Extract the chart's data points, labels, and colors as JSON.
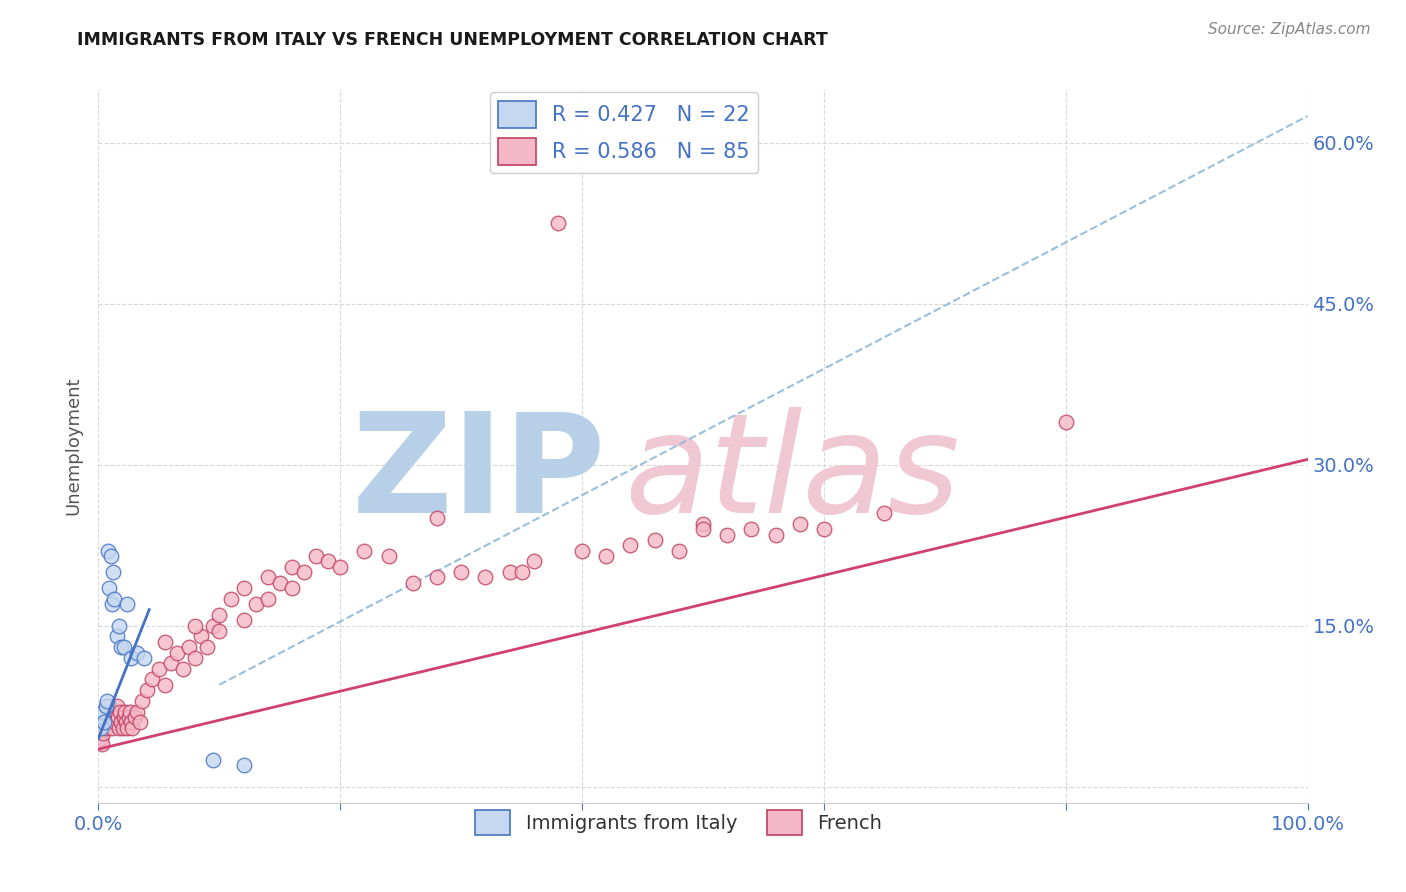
{
  "title": "IMMIGRANTS FROM ITALY VS FRENCH UNEMPLOYMENT CORRELATION CHART",
  "source": "Source: ZipAtlas.com",
  "ylabel": "Unemployment",
  "xlim": [
    0.0,
    1.0
  ],
  "ylim": [
    -0.015,
    0.65
  ],
  "x_ticks": [
    0.0,
    0.2,
    0.4,
    0.6,
    0.8,
    1.0
  ],
  "x_tick_labels": [
    "0.0%",
    "",
    "",
    "",
    "",
    "100.0%"
  ],
  "y_ticks": [
    0.0,
    0.15,
    0.3,
    0.45,
    0.6
  ],
  "y_tick_labels_right": [
    "",
    "15.0%",
    "30.0%",
    "45.0%",
    "60.0%"
  ],
  "color_italy_fill": "#c5d8f0",
  "color_italy_edge": "#4472C4",
  "color_french_fill": "#f5b8c8",
  "color_french_edge": "#c04060",
  "color_italy_trendline": "#4472C4",
  "color_french_trendline": "#d04070",
  "color_dashed": "#90b8d8",
  "background_color": "#ffffff",
  "grid_color": "#d8d8d8",
  "title_color": "#1a1a1a",
  "axis_tick_color": "#4472C4",
  "watermark_zip_color": "#b8cfe8",
  "watermark_atlas_color": "#f0c8d4",
  "legend_r1": "R = 0.427   N = 22",
  "legend_r2": "R = 0.586   N = 85",
  "legend_label1": "Immigrants from Italy",
  "legend_label2": "French",
  "italy_x": [
    0.002,
    0.003,
    0.004,
    0.005,
    0.006,
    0.007,
    0.008,
    0.009,
    0.01,
    0.011,
    0.012,
    0.013,
    0.015,
    0.017,
    0.019,
    0.021,
    0.024,
    0.027,
    0.032,
    0.038,
    0.095,
    0.12
  ],
  "italy_y": [
    0.055,
    0.065,
    0.07,
    0.06,
    0.075,
    0.08,
    0.22,
    0.185,
    0.215,
    0.17,
    0.2,
    0.175,
    0.14,
    0.15,
    0.13,
    0.13,
    0.17,
    0.12,
    0.125,
    0.12,
    0.025,
    0.02
  ],
  "italy_line_x": [
    0.0,
    0.042
  ],
  "italy_line_y": [
    0.045,
    0.165
  ],
  "french_line_x": [
    0.0,
    1.0
  ],
  "french_line_y": [
    0.035,
    0.305
  ],
  "dashed_line_x": [
    0.1,
    1.0
  ],
  "dashed_line_y": [
    0.095,
    0.625
  ],
  "french_x_low": [
    0.002,
    0.003,
    0.004,
    0.005,
    0.006,
    0.007,
    0.008,
    0.009,
    0.01,
    0.011,
    0.012,
    0.013,
    0.014,
    0.015,
    0.016,
    0.017,
    0.018,
    0.019,
    0.02,
    0.021,
    0.022,
    0.023,
    0.024,
    0.025,
    0.026,
    0.027,
    0.028,
    0.03,
    0.032,
    0.034
  ],
  "french_y_low": [
    0.045,
    0.04,
    0.05,
    0.06,
    0.055,
    0.065,
    0.07,
    0.075,
    0.06,
    0.055,
    0.065,
    0.07,
    0.06,
    0.075,
    0.065,
    0.055,
    0.07,
    0.06,
    0.055,
    0.065,
    0.07,
    0.06,
    0.055,
    0.065,
    0.07,
    0.06,
    0.055,
    0.065,
    0.07,
    0.06
  ],
  "french_x_mid": [
    0.036,
    0.04,
    0.044,
    0.05,
    0.055,
    0.06,
    0.065,
    0.07,
    0.075,
    0.08,
    0.085,
    0.09,
    0.095,
    0.1,
    0.11,
    0.12,
    0.13,
    0.14,
    0.15,
    0.16,
    0.17,
    0.18,
    0.19,
    0.2,
    0.055,
    0.08,
    0.1,
    0.12,
    0.14,
    0.16
  ],
  "french_y_mid": [
    0.08,
    0.09,
    0.1,
    0.11,
    0.095,
    0.115,
    0.125,
    0.11,
    0.13,
    0.12,
    0.14,
    0.13,
    0.15,
    0.145,
    0.175,
    0.185,
    0.17,
    0.195,
    0.19,
    0.205,
    0.2,
    0.215,
    0.21,
    0.205,
    0.135,
    0.15,
    0.16,
    0.155,
    0.175,
    0.185
  ],
  "french_x_high": [
    0.22,
    0.24,
    0.26,
    0.28,
    0.3,
    0.32,
    0.34,
    0.36,
    0.38,
    0.4,
    0.42,
    0.44,
    0.46,
    0.48,
    0.5,
    0.52,
    0.54,
    0.56,
    0.58,
    0.6,
    0.65,
    0.8,
    0.28,
    0.35,
    0.5
  ],
  "french_y_high": [
    0.22,
    0.215,
    0.19,
    0.195,
    0.2,
    0.195,
    0.2,
    0.21,
    0.525,
    0.22,
    0.215,
    0.225,
    0.23,
    0.22,
    0.245,
    0.235,
    0.24,
    0.235,
    0.245,
    0.24,
    0.255,
    0.34,
    0.25,
    0.2,
    0.24
  ]
}
